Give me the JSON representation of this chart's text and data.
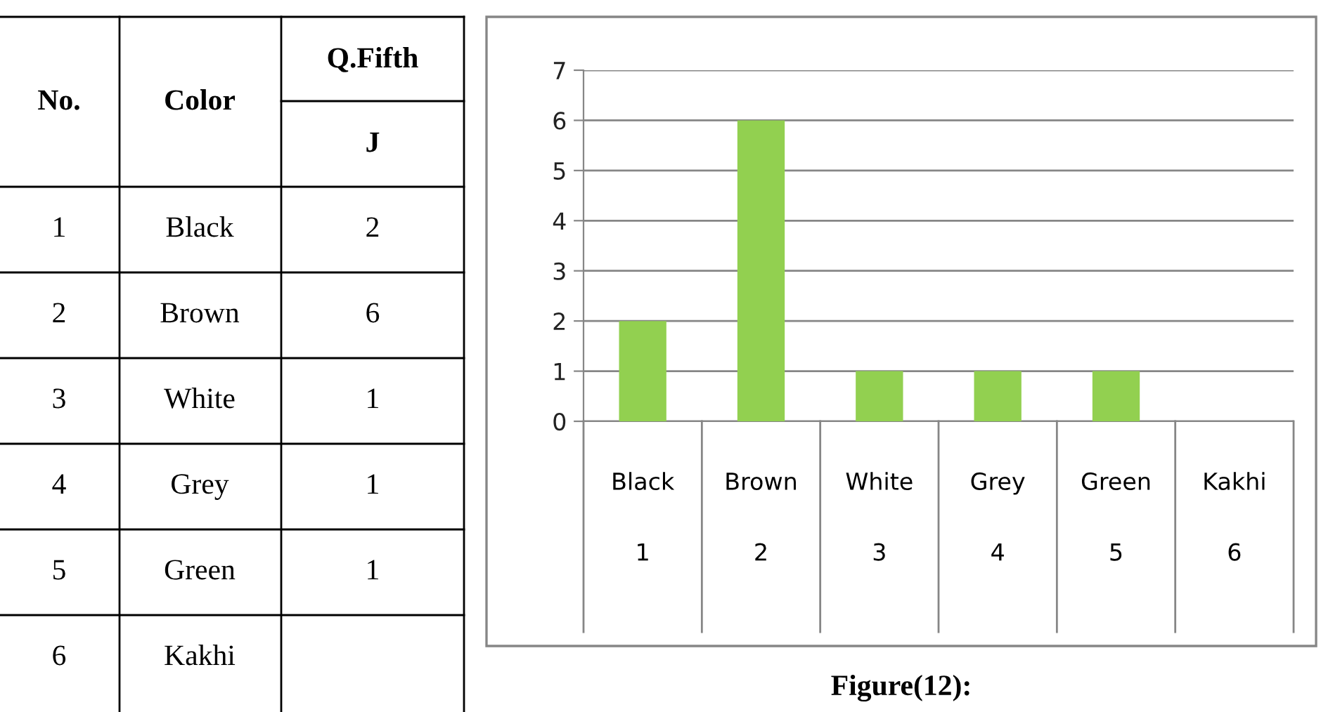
{
  "chart_data": {
    "type": "bar",
    "categories": [
      "Black\n1",
      "Brown\n2",
      "White\n3",
      "Grey\n4",
      "Green\n5",
      "Kakhi\n6"
    ],
    "values": [
      2,
      6,
      1,
      1,
      1,
      null
    ],
    "color": "#92d050",
    "ylim": [
      0,
      7
    ],
    "yticks": [
      0,
      1,
      2,
      3,
      4,
      5,
      6,
      7
    ],
    "grid": "y",
    "annotations": [
      "Figure(12):",
      "No.",
      "Color",
      "Q.Fifth",
      "J",
      "1",
      "Black",
      "2",
      "2",
      "Brown",
      "6",
      "3",
      "White",
      "1",
      "4",
      "Grey",
      "1",
      "5",
      "Green",
      "1",
      "6",
      "Kakhi"
    ]
  }
}
